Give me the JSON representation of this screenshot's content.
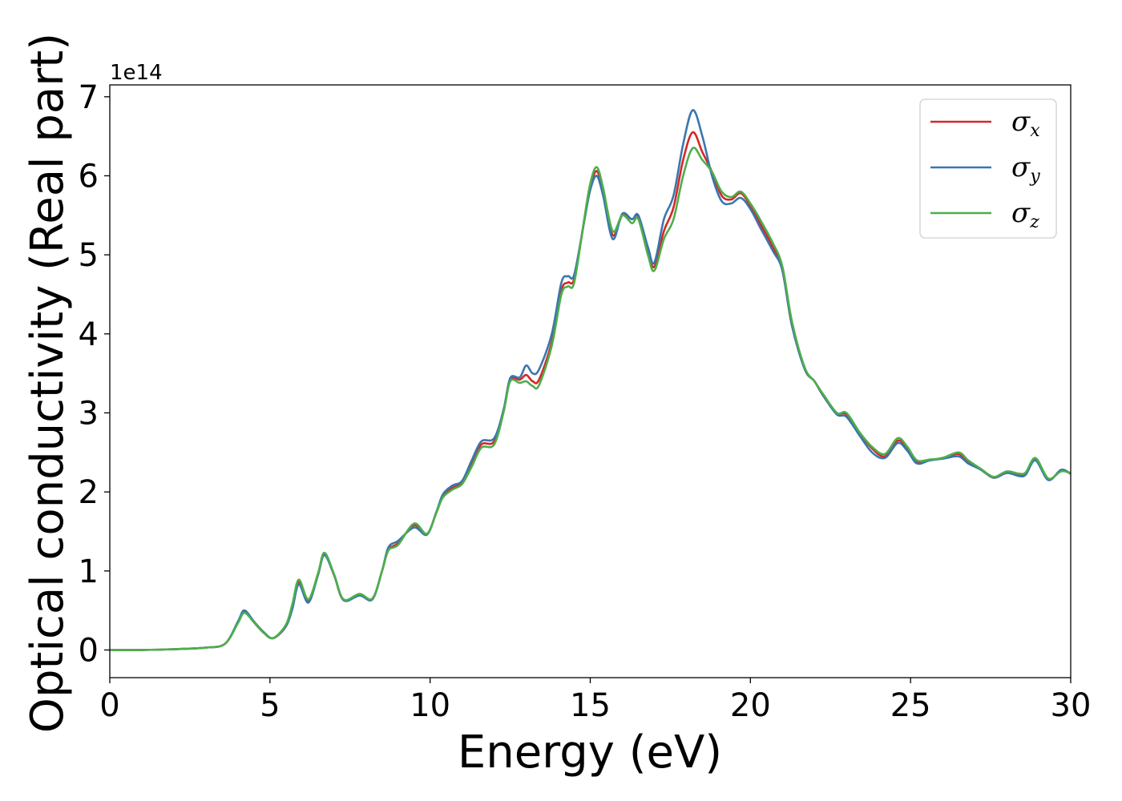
{
  "chart_data": {
    "type": "line",
    "title": "",
    "xlabel": "Energy (eV)",
    "ylabel": "Optical conductivity (Real part)",
    "y_offset_label": "1e14",
    "xlim": [
      0,
      30
    ],
    "ylim": [
      -0.35,
      7.15
    ],
    "x_ticks": [
      0,
      5,
      10,
      15,
      20,
      25,
      30
    ],
    "y_ticks": [
      0,
      1,
      2,
      3,
      4,
      5,
      6,
      7
    ],
    "grid": false,
    "legend_position": "top-right",
    "series": [
      {
        "name": "σx",
        "name_base": "σ",
        "name_sub": "x",
        "color": "#d62728",
        "points": [
          [
            0,
            0
          ],
          [
            1,
            0
          ],
          [
            2,
            0.01
          ],
          [
            3,
            0.03
          ],
          [
            3.6,
            0.08
          ],
          [
            4.0,
            0.35
          ],
          [
            4.2,
            0.49
          ],
          [
            4.5,
            0.35
          ],
          [
            4.8,
            0.22
          ],
          [
            5.1,
            0.15
          ],
          [
            5.5,
            0.3
          ],
          [
            5.7,
            0.55
          ],
          [
            5.9,
            0.86
          ],
          [
            6.2,
            0.62
          ],
          [
            6.5,
            0.95
          ],
          [
            6.7,
            1.21
          ],
          [
            7.0,
            0.95
          ],
          [
            7.3,
            0.63
          ],
          [
            7.8,
            0.7
          ],
          [
            8.2,
            0.65
          ],
          [
            8.5,
            1.0
          ],
          [
            8.7,
            1.27
          ],
          [
            9.0,
            1.35
          ],
          [
            9.5,
            1.58
          ],
          [
            9.9,
            1.46
          ],
          [
            10.2,
            1.75
          ],
          [
            10.4,
            1.95
          ],
          [
            10.7,
            2.05
          ],
          [
            11.0,
            2.12
          ],
          [
            11.3,
            2.35
          ],
          [
            11.6,
            2.6
          ],
          [
            12.0,
            2.64
          ],
          [
            12.3,
            3.05
          ],
          [
            12.5,
            3.42
          ],
          [
            12.8,
            3.42
          ],
          [
            13.0,
            3.48
          ],
          [
            13.2,
            3.4
          ],
          [
            13.4,
            3.42
          ],
          [
            13.8,
            3.9
          ],
          [
            14.1,
            4.55
          ],
          [
            14.3,
            4.65
          ],
          [
            14.5,
            4.7
          ],
          [
            14.8,
            5.4
          ],
          [
            15.0,
            5.85
          ],
          [
            15.2,
            6.06
          ],
          [
            15.4,
            5.8
          ],
          [
            15.7,
            5.25
          ],
          [
            16.0,
            5.5
          ],
          [
            16.3,
            5.45
          ],
          [
            16.5,
            5.48
          ],
          [
            16.8,
            5.05
          ],
          [
            17.0,
            4.85
          ],
          [
            17.3,
            5.3
          ],
          [
            17.6,
            5.6
          ],
          [
            17.9,
            6.2
          ],
          [
            18.2,
            6.55
          ],
          [
            18.5,
            6.3
          ],
          [
            18.8,
            6.05
          ],
          [
            19.1,
            5.75
          ],
          [
            19.4,
            5.7
          ],
          [
            19.7,
            5.78
          ],
          [
            20.0,
            5.62
          ],
          [
            20.3,
            5.4
          ],
          [
            20.7,
            5.1
          ],
          [
            21.0,
            4.8
          ],
          [
            21.3,
            4.1
          ],
          [
            21.7,
            3.55
          ],
          [
            22.0,
            3.4
          ],
          [
            22.3,
            3.2
          ],
          [
            22.7,
            3.0
          ],
          [
            23.0,
            2.98
          ],
          [
            23.4,
            2.75
          ],
          [
            23.8,
            2.55
          ],
          [
            24.2,
            2.45
          ],
          [
            24.6,
            2.65
          ],
          [
            24.9,
            2.55
          ],
          [
            25.2,
            2.38
          ],
          [
            25.6,
            2.4
          ],
          [
            26.0,
            2.43
          ],
          [
            26.5,
            2.48
          ],
          [
            26.8,
            2.38
          ],
          [
            27.2,
            2.28
          ],
          [
            27.6,
            2.18
          ],
          [
            28.0,
            2.24
          ],
          [
            28.4,
            2.22
          ],
          [
            28.6,
            2.24
          ],
          [
            28.9,
            2.42
          ],
          [
            29.3,
            2.16
          ],
          [
            29.7,
            2.27
          ],
          [
            30.0,
            2.23
          ]
        ]
      },
      {
        "name": "σy",
        "name_base": "σ",
        "name_sub": "y",
        "color": "#3a76af",
        "points": [
          [
            0,
            0
          ],
          [
            1,
            0
          ],
          [
            2,
            0.01
          ],
          [
            3,
            0.03
          ],
          [
            3.6,
            0.08
          ],
          [
            4.0,
            0.36
          ],
          [
            4.2,
            0.5
          ],
          [
            4.5,
            0.36
          ],
          [
            4.8,
            0.23
          ],
          [
            5.1,
            0.15
          ],
          [
            5.5,
            0.3
          ],
          [
            5.7,
            0.52
          ],
          [
            5.9,
            0.83
          ],
          [
            6.2,
            0.6
          ],
          [
            6.5,
            0.95
          ],
          [
            6.7,
            1.2
          ],
          [
            7.0,
            0.95
          ],
          [
            7.3,
            0.63
          ],
          [
            7.8,
            0.69
          ],
          [
            8.2,
            0.64
          ],
          [
            8.5,
            1.0
          ],
          [
            8.7,
            1.3
          ],
          [
            9.0,
            1.38
          ],
          [
            9.5,
            1.55
          ],
          [
            9.9,
            1.46
          ],
          [
            10.2,
            1.75
          ],
          [
            10.4,
            1.97
          ],
          [
            10.7,
            2.08
          ],
          [
            11.0,
            2.14
          ],
          [
            11.3,
            2.4
          ],
          [
            11.6,
            2.64
          ],
          [
            12.0,
            2.68
          ],
          [
            12.3,
            3.05
          ],
          [
            12.5,
            3.44
          ],
          [
            12.8,
            3.45
          ],
          [
            13.0,
            3.6
          ],
          [
            13.2,
            3.5
          ],
          [
            13.4,
            3.55
          ],
          [
            13.8,
            4.0
          ],
          [
            14.1,
            4.65
          ],
          [
            14.3,
            4.73
          ],
          [
            14.5,
            4.75
          ],
          [
            14.8,
            5.4
          ],
          [
            15.0,
            5.82
          ],
          [
            15.2,
            6.0
          ],
          [
            15.4,
            5.75
          ],
          [
            15.7,
            5.2
          ],
          [
            16.0,
            5.52
          ],
          [
            16.3,
            5.45
          ],
          [
            16.5,
            5.5
          ],
          [
            16.8,
            5.1
          ],
          [
            17.0,
            4.9
          ],
          [
            17.3,
            5.45
          ],
          [
            17.6,
            5.75
          ],
          [
            17.9,
            6.4
          ],
          [
            18.2,
            6.83
          ],
          [
            18.5,
            6.5
          ],
          [
            18.8,
            6.0
          ],
          [
            19.1,
            5.68
          ],
          [
            19.4,
            5.65
          ],
          [
            19.7,
            5.72
          ],
          [
            20.0,
            5.58
          ],
          [
            20.3,
            5.35
          ],
          [
            20.7,
            5.05
          ],
          [
            21.0,
            4.8
          ],
          [
            21.3,
            4.1
          ],
          [
            21.7,
            3.55
          ],
          [
            22.0,
            3.4
          ],
          [
            22.3,
            3.2
          ],
          [
            22.7,
            2.98
          ],
          [
            23.0,
            2.95
          ],
          [
            23.4,
            2.72
          ],
          [
            23.8,
            2.5
          ],
          [
            24.2,
            2.43
          ],
          [
            24.6,
            2.62
          ],
          [
            24.9,
            2.52
          ],
          [
            25.2,
            2.36
          ],
          [
            25.6,
            2.4
          ],
          [
            26.0,
            2.42
          ],
          [
            26.5,
            2.45
          ],
          [
            26.8,
            2.36
          ],
          [
            27.2,
            2.28
          ],
          [
            27.6,
            2.18
          ],
          [
            28.0,
            2.24
          ],
          [
            28.4,
            2.2
          ],
          [
            28.6,
            2.22
          ],
          [
            28.9,
            2.4
          ],
          [
            29.3,
            2.15
          ],
          [
            29.7,
            2.28
          ],
          [
            30.0,
            2.23
          ]
        ]
      },
      {
        "name": "σz",
        "name_base": "σ",
        "name_sub": "z",
        "color": "#4daf4a",
        "points": [
          [
            0,
            0
          ],
          [
            1,
            0
          ],
          [
            2,
            0.01
          ],
          [
            3,
            0.03
          ],
          [
            3.6,
            0.08
          ],
          [
            4.0,
            0.34
          ],
          [
            4.2,
            0.47
          ],
          [
            4.5,
            0.35
          ],
          [
            4.8,
            0.22
          ],
          [
            5.1,
            0.15
          ],
          [
            5.5,
            0.32
          ],
          [
            5.7,
            0.58
          ],
          [
            5.9,
            0.89
          ],
          [
            6.2,
            0.64
          ],
          [
            6.5,
            0.97
          ],
          [
            6.7,
            1.23
          ],
          [
            7.0,
            0.96
          ],
          [
            7.3,
            0.64
          ],
          [
            7.8,
            0.71
          ],
          [
            8.2,
            0.65
          ],
          [
            8.5,
            1.0
          ],
          [
            8.7,
            1.26
          ],
          [
            9.0,
            1.33
          ],
          [
            9.5,
            1.6
          ],
          [
            9.9,
            1.47
          ],
          [
            10.2,
            1.74
          ],
          [
            10.4,
            1.93
          ],
          [
            10.7,
            2.03
          ],
          [
            11.0,
            2.1
          ],
          [
            11.3,
            2.32
          ],
          [
            11.6,
            2.56
          ],
          [
            12.0,
            2.6
          ],
          [
            12.3,
            3.02
          ],
          [
            12.5,
            3.4
          ],
          [
            12.8,
            3.38
          ],
          [
            13.0,
            3.4
          ],
          [
            13.2,
            3.34
          ],
          [
            13.4,
            3.35
          ],
          [
            13.8,
            3.85
          ],
          [
            14.1,
            4.5
          ],
          [
            14.3,
            4.6
          ],
          [
            14.5,
            4.65
          ],
          [
            14.8,
            5.42
          ],
          [
            15.0,
            5.9
          ],
          [
            15.2,
            6.11
          ],
          [
            15.4,
            5.85
          ],
          [
            15.7,
            5.3
          ],
          [
            16.0,
            5.5
          ],
          [
            16.3,
            5.4
          ],
          [
            16.5,
            5.45
          ],
          [
            16.8,
            5.0
          ],
          [
            17.0,
            4.8
          ],
          [
            17.3,
            5.2
          ],
          [
            17.6,
            5.45
          ],
          [
            17.9,
            6.0
          ],
          [
            18.2,
            6.35
          ],
          [
            18.5,
            6.2
          ],
          [
            18.8,
            6.05
          ],
          [
            19.1,
            5.8
          ],
          [
            19.4,
            5.73
          ],
          [
            19.7,
            5.8
          ],
          [
            20.0,
            5.65
          ],
          [
            20.3,
            5.45
          ],
          [
            20.7,
            5.15
          ],
          [
            21.0,
            4.85
          ],
          [
            21.3,
            4.15
          ],
          [
            21.7,
            3.57
          ],
          [
            22.0,
            3.4
          ],
          [
            22.3,
            3.22
          ],
          [
            22.7,
            3.0
          ],
          [
            23.0,
            3.0
          ],
          [
            23.4,
            2.76
          ],
          [
            23.8,
            2.57
          ],
          [
            24.2,
            2.48
          ],
          [
            24.6,
            2.68
          ],
          [
            24.9,
            2.57
          ],
          [
            25.2,
            2.4
          ],
          [
            25.6,
            2.41
          ],
          [
            26.0,
            2.43
          ],
          [
            26.5,
            2.5
          ],
          [
            26.8,
            2.4
          ],
          [
            27.2,
            2.29
          ],
          [
            27.6,
            2.19
          ],
          [
            28.0,
            2.26
          ],
          [
            28.4,
            2.23
          ],
          [
            28.6,
            2.25
          ],
          [
            28.9,
            2.43
          ],
          [
            29.3,
            2.17
          ],
          [
            29.7,
            2.26
          ],
          [
            30.0,
            2.24
          ]
        ]
      }
    ]
  }
}
